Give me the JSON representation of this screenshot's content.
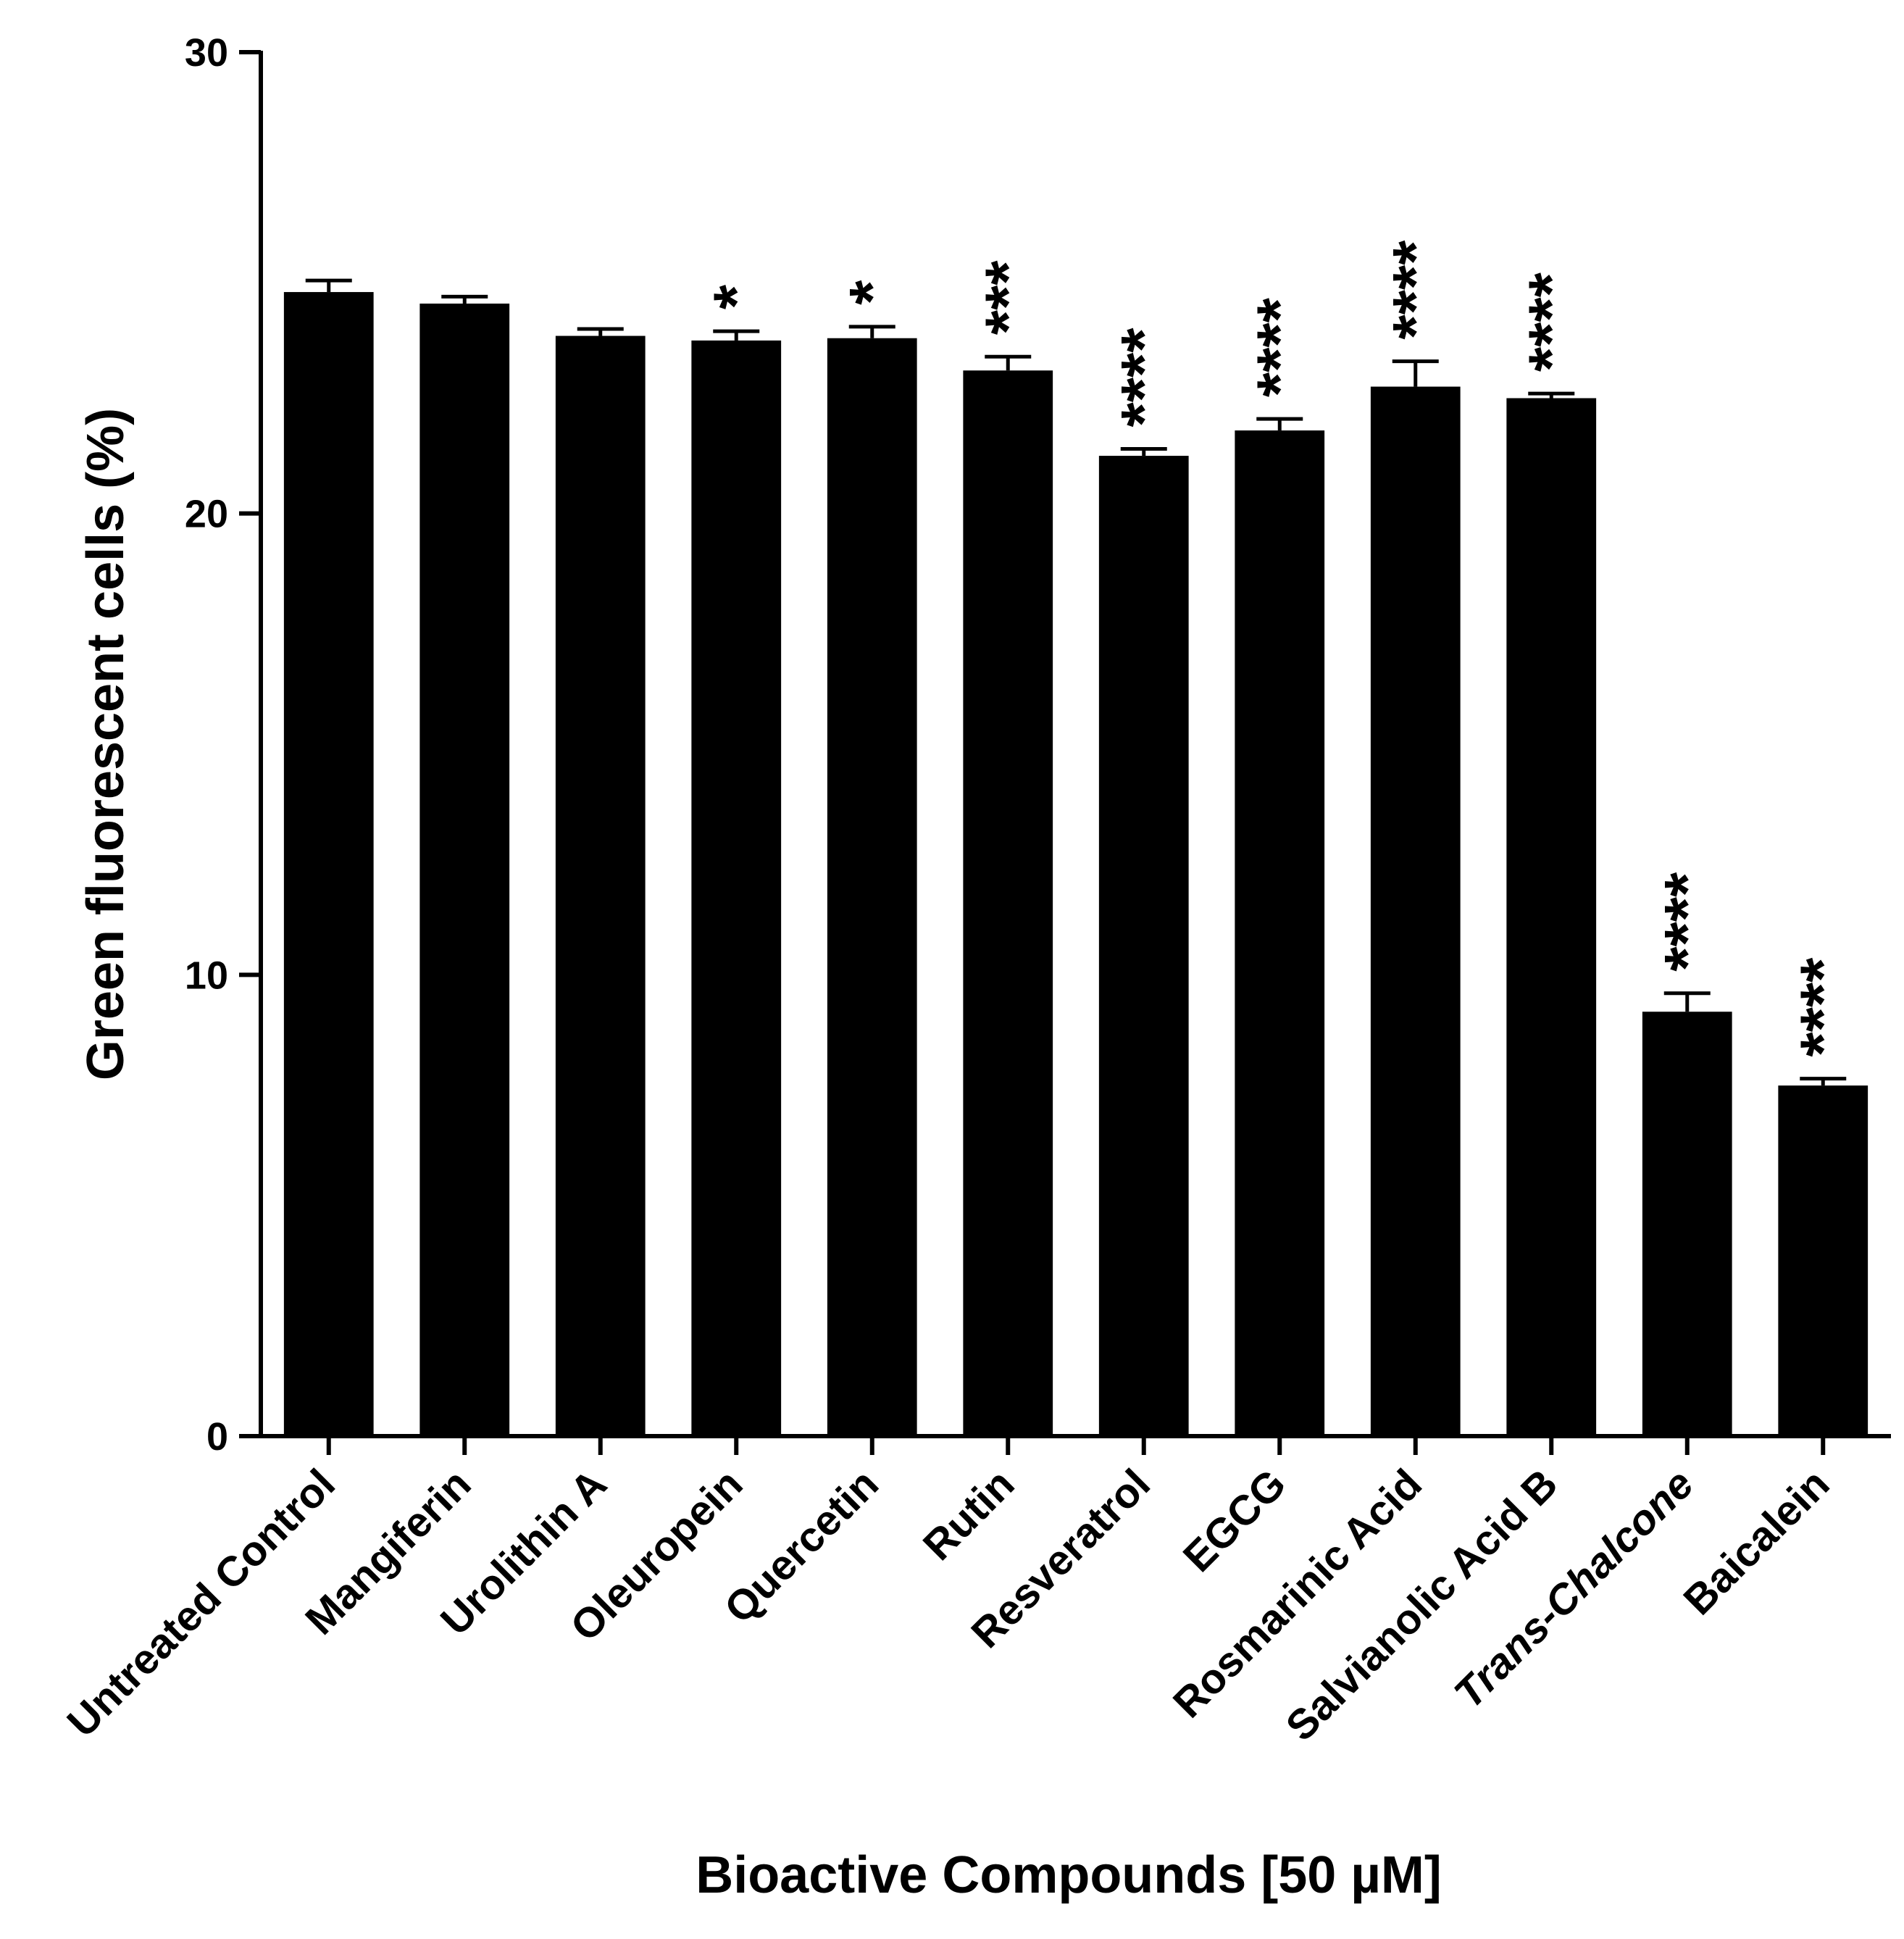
{
  "chart_data": {
    "type": "bar",
    "title": "",
    "xlabel": "Bioactive Compounds [50 µM]",
    "ylabel": "Green fluorescent cells (%)",
    "ylim": [
      0,
      30
    ],
    "yticks": [
      "0",
      "10",
      "20",
      "30"
    ],
    "grid": false,
    "legend": "none",
    "bar_color": "#000000",
    "categories": [
      "Untreated Control",
      "Mangiferin",
      "Urolithin A",
      "Oleuropein",
      "Quercetin",
      "Rutin",
      "Resveratrol",
      "EGCG",
      "Rosmarinic Acid",
      "Salvianolic Acid B",
      "Trans-Chalcone",
      "Baicalein"
    ],
    "italic_categories": [
      "Trans-Chalcone"
    ],
    "values": [
      24.8,
      24.55,
      23.85,
      23.75,
      23.8,
      23.1,
      21.25,
      21.8,
      22.75,
      22.5,
      9.2,
      7.6
    ],
    "errors": [
      0.25,
      0.15,
      0.15,
      0.2,
      0.25,
      0.3,
      0.15,
      0.25,
      0.55,
      0.1,
      0.4,
      0.15
    ],
    "significance": [
      "",
      "",
      "",
      "*",
      "*",
      "***",
      "****",
      "****",
      "****",
      "****",
      "****",
      "****"
    ]
  }
}
